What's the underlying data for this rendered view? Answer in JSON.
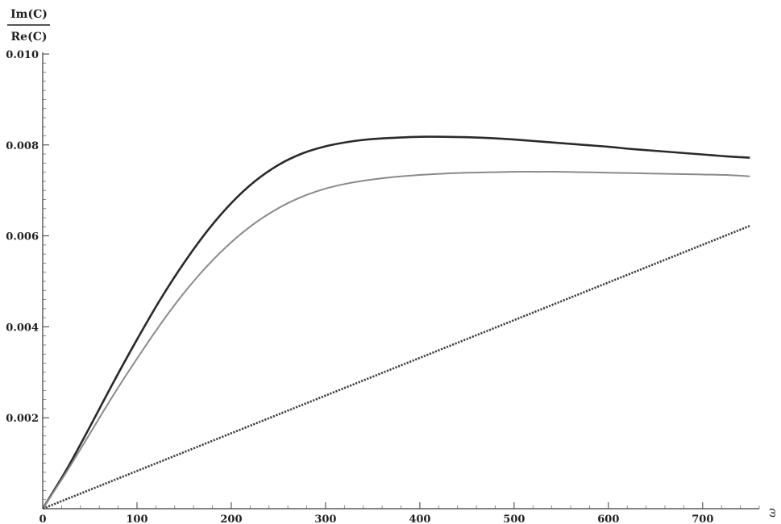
{
  "chart_data": {
    "type": "line",
    "title": "",
    "xlabel": "ω",
    "ylabel": {
      "numerator": "Im(C)",
      "denominator": "Re(C)"
    },
    "xlim": [
      0,
      760
    ],
    "ylim": [
      0,
      0.01
    ],
    "x_ticks": [
      0,
      100,
      200,
      300,
      400,
      500,
      600,
      700
    ],
    "x_tick_labels": [
      "0",
      "100",
      "200",
      "300",
      "400",
      "500",
      "600",
      "700"
    ],
    "y_ticks": [
      0.002,
      0.004,
      0.006,
      0.008,
      0.01
    ],
    "y_tick_labels": [
      "0.002",
      "0.004",
      "0.006",
      "0.008",
      "0.010"
    ],
    "grid": false,
    "legend": "none",
    "series": [
      {
        "color": "#2a2a2a",
        "dash": "solid",
        "x": [
          0,
          25,
          50,
          75,
          100,
          125,
          150,
          175,
          200,
          225,
          250,
          275,
          300,
          325,
          350,
          375,
          400,
          425,
          450,
          475,
          500,
          525,
          550,
          575,
          600,
          625,
          650,
          675,
          700,
          725,
          750
        ],
        "y": [
          0,
          0.00085,
          0.0018,
          0.00278,
          0.00372,
          0.00461,
          0.00541,
          0.00612,
          0.00672,
          0.0072,
          0.00756,
          0.00781,
          0.00797,
          0.00807,
          0.00813,
          0.00816,
          0.00818,
          0.00818,
          0.00817,
          0.00815,
          0.00812,
          0.00808,
          0.00804,
          0.008,
          0.00796,
          0.00791,
          0.00787,
          0.00783,
          0.00779,
          0.00775,
          0.00772
        ]
      },
      {
        "color": "#8a8a8a",
        "dash": "solid",
        "x": [
          0,
          25,
          50,
          75,
          100,
          125,
          150,
          175,
          200,
          225,
          250,
          275,
          300,
          325,
          350,
          375,
          400,
          425,
          450,
          475,
          500,
          525,
          550,
          575,
          600,
          625,
          650,
          675,
          700,
          725,
          750
        ],
        "y": [
          0,
          0.0008,
          0.00165,
          0.0025,
          0.0033,
          0.00406,
          0.00475,
          0.00535,
          0.00586,
          0.00628,
          0.00661,
          0.00686,
          0.00704,
          0.00716,
          0.00724,
          0.0073,
          0.00734,
          0.00737,
          0.00739,
          0.0074,
          0.00741,
          0.00741,
          0.00741,
          0.0074,
          0.00739,
          0.00738,
          0.00737,
          0.00736,
          0.00735,
          0.00734,
          0.00731
        ]
      },
      {
        "color": "#3c3c3c",
        "dash": "dotted",
        "x": [
          0,
          750
        ],
        "y": [
          0,
          0.00622
        ]
      }
    ]
  }
}
